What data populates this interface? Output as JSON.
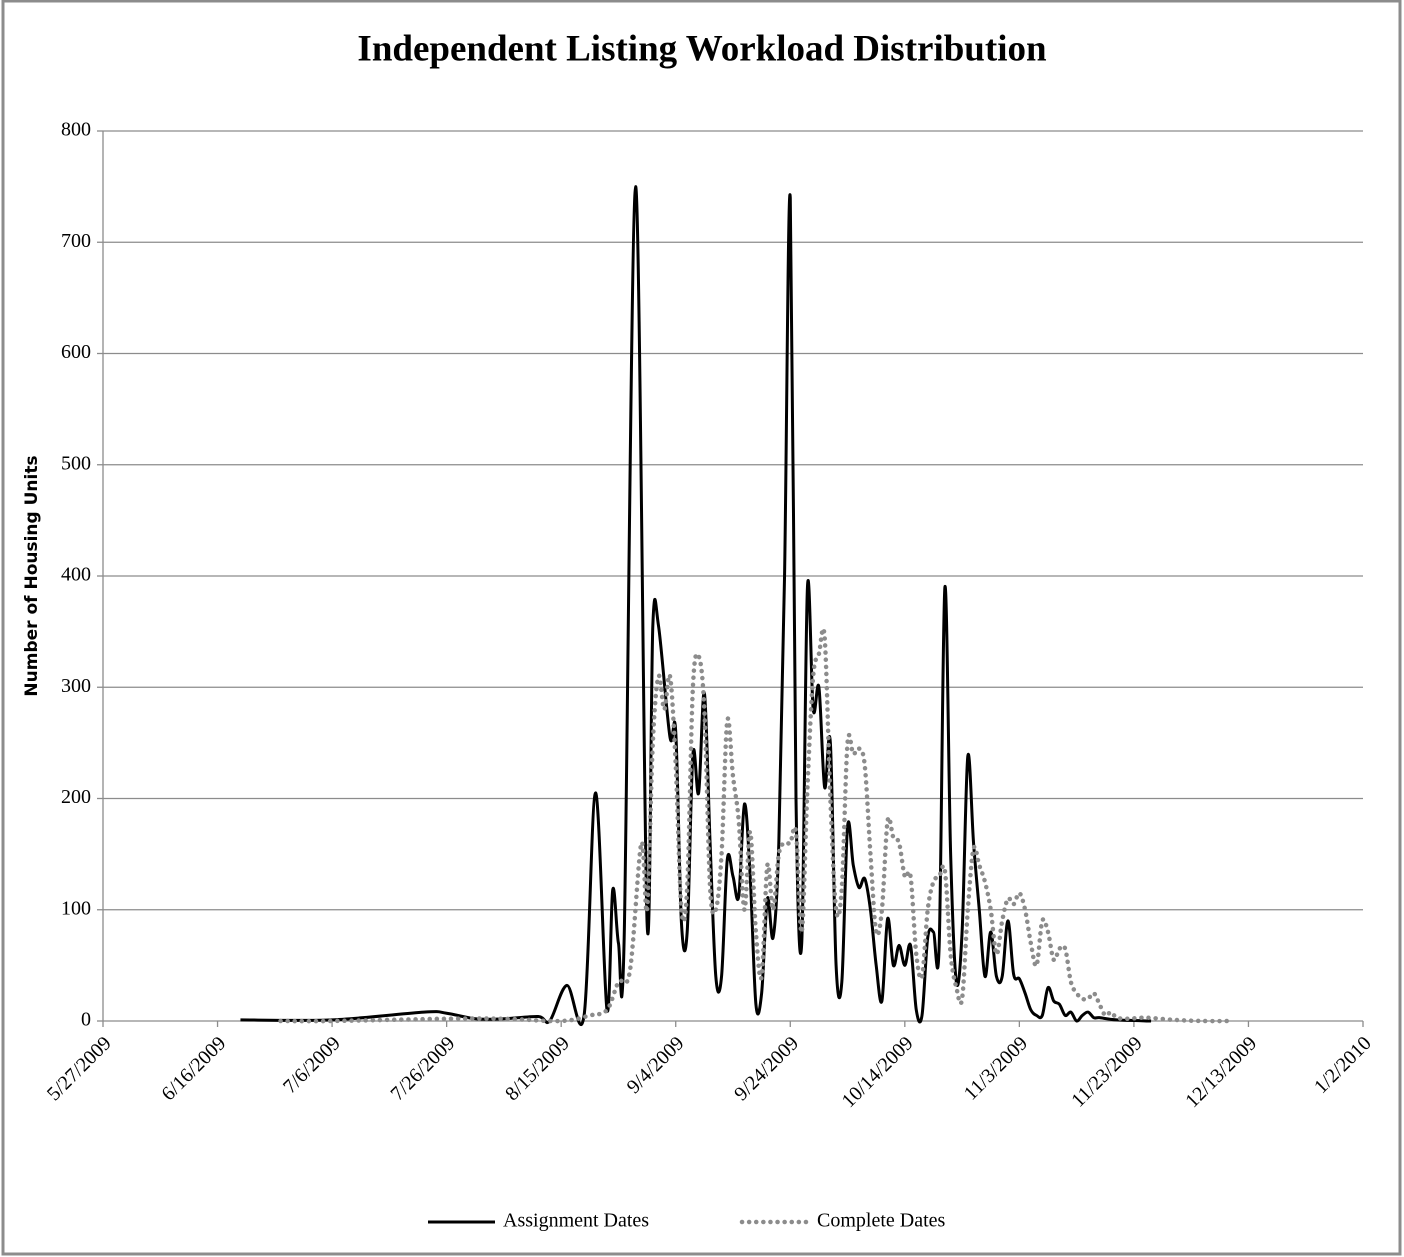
{
  "chart_data": {
    "type": "line",
    "title": "Independent Listing Workload Distribution",
    "y_label": "Number of Housing Units",
    "xlim": [
      "5/27/2009",
      "1/2/2010"
    ],
    "xticks": [
      "5/27/2009",
      "6/16/2009",
      "7/6/2009",
      "7/26/2009",
      "8/15/2009",
      "9/4/2009",
      "9/24/2009",
      "10/14/2009",
      "11/3/2009",
      "11/23/2009",
      "12/13/2009",
      "1/2/2010"
    ],
    "ylim": [
      0,
      800
    ],
    "yticks": [
      0,
      100,
      200,
      300,
      400,
      500,
      600,
      700,
      800
    ],
    "grid": true,
    "legend": "bottom",
    "series": [
      {
        "name": "Assignment Dates",
        "color": "#000000",
        "style": "solid",
        "x": [
          "6/20/2009",
          "7/6/2009",
          "7/22/2009",
          "7/26/2009",
          "7/31/2009",
          "8/5/2009",
          "8/11/2009",
          "8/13/2009",
          "8/16/2009",
          "8/19/2009",
          "8/21/2009",
          "8/23/2009",
          "8/24/2009",
          "8/25/2009",
          "8/26/2009",
          "8/28/2009",
          "8/30/2009",
          "8/31/2009",
          "9/1/2009",
          "9/3/2009",
          "9/4/2009",
          "9/5/2009",
          "9/6/2009",
          "9/7/2009",
          "9/8/2009",
          "9/9/2009",
          "9/10/2009",
          "9/11/2009",
          "9/12/2009",
          "9/13/2009",
          "9/14/2009",
          "9/15/2009",
          "9/16/2009",
          "9/17/2009",
          "9/18/2009",
          "9/19/2009",
          "9/20/2009",
          "9/21/2009",
          "9/22/2009",
          "9/23/2009",
          "9/24/2009",
          "9/25/2009",
          "9/26/2009",
          "9/27/2009",
          "9/28/2009",
          "9/29/2009",
          "9/30/2009",
          "10/1/2009",
          "10/2/2009",
          "10/3/2009",
          "10/4/2009",
          "10/5/2009",
          "10/6/2009",
          "10/7/2009",
          "10/8/2009",
          "10/9/2009",
          "10/10/2009",
          "10/11/2009",
          "10/12/2009",
          "10/13/2009",
          "10/14/2009",
          "10/15/2009",
          "10/16/2009",
          "10/17/2009",
          "10/18/2009",
          "10/19/2009",
          "10/20/2009",
          "10/21/2009",
          "10/22/2009",
          "10/23/2009",
          "10/24/2009",
          "10/25/2009",
          "10/26/2009",
          "10/27/2009",
          "10/28/2009",
          "10/29/2009",
          "10/30/2009",
          "10/31/2009",
          "11/1/2009",
          "11/2/2009",
          "11/3/2009",
          "11/4/2009",
          "11/5/2009",
          "11/6/2009",
          "11/7/2009",
          "11/8/2009",
          "11/9/2009",
          "11/10/2009",
          "11/11/2009",
          "11/12/2009",
          "11/13/2009",
          "11/14/2009",
          "11/15/2009",
          "11/16/2009",
          "11/17/2009",
          "11/20/2009",
          "11/26/2009"
        ],
        "values": [
          1,
          1,
          8,
          7,
          2,
          2,
          4,
          0,
          32,
          5,
          205,
          10,
          118,
          70,
          75,
          750,
          88,
          355,
          355,
          255,
          260,
          88,
          80,
          240,
          205,
          295,
          160,
          40,
          40,
          145,
          130,
          112,
          195,
          130,
          15,
          25,
          110,
          75,
          160,
          400,
          740,
          200,
          70,
          390,
          280,
          300,
          210,
          250,
          50,
          35,
          175,
          140,
          120,
          128,
          100,
          50,
          18,
          92,
          50,
          68,
          50,
          68,
          10,
          5,
          75,
          80,
          68,
          390,
          150,
          35,
          80,
          238,
          160,
          100,
          40,
          80,
          40,
          40,
          90,
          42,
          38,
          25,
          10,
          5,
          5,
          30,
          18,
          15,
          5,
          8,
          0,
          5,
          8,
          3,
          3,
          1,
          0
        ]
      },
      {
        "name": "Complete Dates",
        "color": "#8c8c8c",
        "style": "dotted",
        "x": [
          "6/27/2009",
          "7/6/2009",
          "7/26/2009",
          "8/5/2009",
          "8/15/2009",
          "8/20/2009",
          "8/23/2009",
          "8/25/2009",
          "8/27/2009",
          "8/29/2009",
          "8/30/2009",
          "8/31/2009",
          "9/1/2009",
          "9/2/2009",
          "9/3/2009",
          "9/4/2009",
          "9/5/2009",
          "9/6/2009",
          "9/7/2009",
          "9/8/2009",
          "9/9/2009",
          "9/10/2009",
          "9/11/2009",
          "9/12/2009",
          "9/13/2009",
          "9/14/2009",
          "9/15/2009",
          "9/16/2009",
          "9/17/2009",
          "9/18/2009",
          "9/19/2009",
          "9/20/2009",
          "9/21/2009",
          "9/22/2009",
          "9/23/2009",
          "9/24/2009",
          "9/25/2009",
          "9/26/2009",
          "9/27/2009",
          "9/28/2009",
          "9/29/2009",
          "9/30/2009",
          "10/1/2009",
          "10/2/2009",
          "10/3/2009",
          "10/4/2009",
          "10/5/2009",
          "10/6/2009",
          "10/7/2009",
          "10/8/2009",
          "10/9/2009",
          "10/10/2009",
          "10/11/2009",
          "10/12/2009",
          "10/13/2009",
          "10/14/2009",
          "10/15/2009",
          "10/16/2009",
          "10/17/2009",
          "10/18/2009",
          "10/19/2009",
          "10/20/2009",
          "10/21/2009",
          "10/22/2009",
          "10/23/2009",
          "10/24/2009",
          "10/25/2009",
          "10/26/2009",
          "10/27/2009",
          "10/28/2009",
          "10/29/2009",
          "10/30/2009",
          "10/31/2009",
          "11/1/2009",
          "11/2/2009",
          "11/3/2009",
          "11/4/2009",
          "11/5/2009",
          "11/6/2009",
          "11/7/2009",
          "11/8/2009",
          "11/9/2009",
          "11/10/2009",
          "11/11/2009",
          "11/12/2009",
          "11/13/2009",
          "11/14/2009",
          "11/15/2009",
          "11/16/2009",
          "11/17/2009",
          "11/18/2009",
          "11/19/2009",
          "11/20/2009",
          "11/22/2009",
          "11/25/2009",
          "11/30/2009",
          "12/5/2009",
          "12/10/2009"
        ],
        "values": [
          0,
          0,
          2,
          2,
          0,
          5,
          10,
          35,
          45,
          160,
          100,
          250,
          310,
          280,
          310,
          230,
          100,
          120,
          300,
          328,
          280,
          120,
          100,
          150,
          270,
          220,
          180,
          100,
          170,
          80,
          40,
          140,
          100,
          150,
          160,
          160,
          170,
          80,
          210,
          310,
          330,
          345,
          200,
          100,
          120,
          250,
          240,
          245,
          230,
          150,
          80,
          100,
          180,
          165,
          160,
          130,
          130,
          60,
          40,
          100,
          125,
          130,
          135,
          60,
          30,
          20,
          100,
          155,
          140,
          125,
          100,
          60,
          90,
          110,
          105,
          115,
          100,
          70,
          50,
          90,
          80,
          55,
          65,
          65,
          35,
          25,
          20,
          20,
          25,
          15,
          5,
          8,
          3,
          2,
          3,
          1,
          0,
          0
        ]
      }
    ]
  }
}
